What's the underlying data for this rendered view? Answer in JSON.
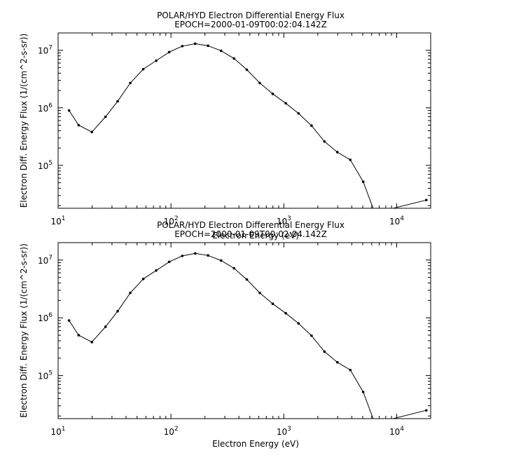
{
  "chart_data": [
    {
      "type": "line",
      "title": "POLAR/HYD  Electron Differential Energy Flux",
      "subtitle": "EPOCH=2000-01-09T00:02:04.142Z",
      "xlabel": "Electron Energy (eV)",
      "ylabel": "Electron Diff. Energy Flux (1/(cm^2-s-sr))",
      "xscale": "log",
      "yscale": "log",
      "xlim": [
        10,
        20000
      ],
      "ylim": [
        18000,
        20000000
      ],
      "xticks": [
        {
          "b": "10",
          "e": "1"
        },
        {
          "b": "10",
          "e": "2"
        },
        {
          "b": "10",
          "e": "3"
        },
        {
          "b": "10",
          "e": "4"
        }
      ],
      "yticks": [
        {
          "b": "10",
          "e": "5"
        },
        {
          "b": "10",
          "e": "6"
        },
        {
          "b": "10",
          "e": "7"
        }
      ],
      "grid": false,
      "series": [
        {
          "x": [
            12.5,
            15.2,
            19.9,
            26.3,
            33.7,
            43.6,
            56.8,
            74.0,
            96.5,
            126,
            164,
            213,
            278,
            362,
            470,
            612,
            797,
            1040,
            1350,
            1760,
            2290,
            2980,
            3880,
            5050,
            6400,
            18300
          ],
          "y": [
            900000,
            500000,
            380000,
            700000,
            1300000,
            2700000,
            4700000,
            6600000,
            9300000,
            11800000,
            13000000,
            12000000,
            9800000,
            7200000,
            4600000,
            2700000,
            1750000,
            1200000,
            800000,
            490000,
            260000,
            170000,
            125000,
            52000,
            15000,
            25000
          ]
        }
      ]
    },
    {
      "type": "line",
      "title": "POLAR/HYD  Electron Differential Energy Flux",
      "subtitle": "EPOCH=2000-01-09T00:02:04.142Z",
      "xlabel": "Electron Energy (eV)",
      "ylabel": "Electron Diff. Energy Flux (1/(cm^2-s-sr))",
      "xscale": "log",
      "yscale": "log",
      "xlim": [
        10,
        20000
      ],
      "ylim": [
        18000,
        20000000
      ],
      "xticks": [
        {
          "b": "10",
          "e": "1"
        },
        {
          "b": "10",
          "e": "2"
        },
        {
          "b": "10",
          "e": "3"
        },
        {
          "b": "10",
          "e": "4"
        }
      ],
      "yticks": [
        {
          "b": "10",
          "e": "5"
        },
        {
          "b": "10",
          "e": "6"
        },
        {
          "b": "10",
          "e": "7"
        }
      ],
      "grid": false,
      "series": [
        {
          "x": [
            12.5,
            15.2,
            19.9,
            26.3,
            33.7,
            43.6,
            56.8,
            74.0,
            96.5,
            126,
            164,
            213,
            278,
            362,
            470,
            612,
            797,
            1040,
            1350,
            1760,
            2290,
            2980,
            3880,
            5050,
            6400,
            18300
          ],
          "y": [
            900000,
            500000,
            380000,
            700000,
            1300000,
            2700000,
            4700000,
            6600000,
            9300000,
            11800000,
            13000000,
            12000000,
            9800000,
            7200000,
            4600000,
            2700000,
            1750000,
            1200000,
            800000,
            490000,
            260000,
            170000,
            125000,
            52000,
            15000,
            25000
          ]
        }
      ]
    }
  ]
}
